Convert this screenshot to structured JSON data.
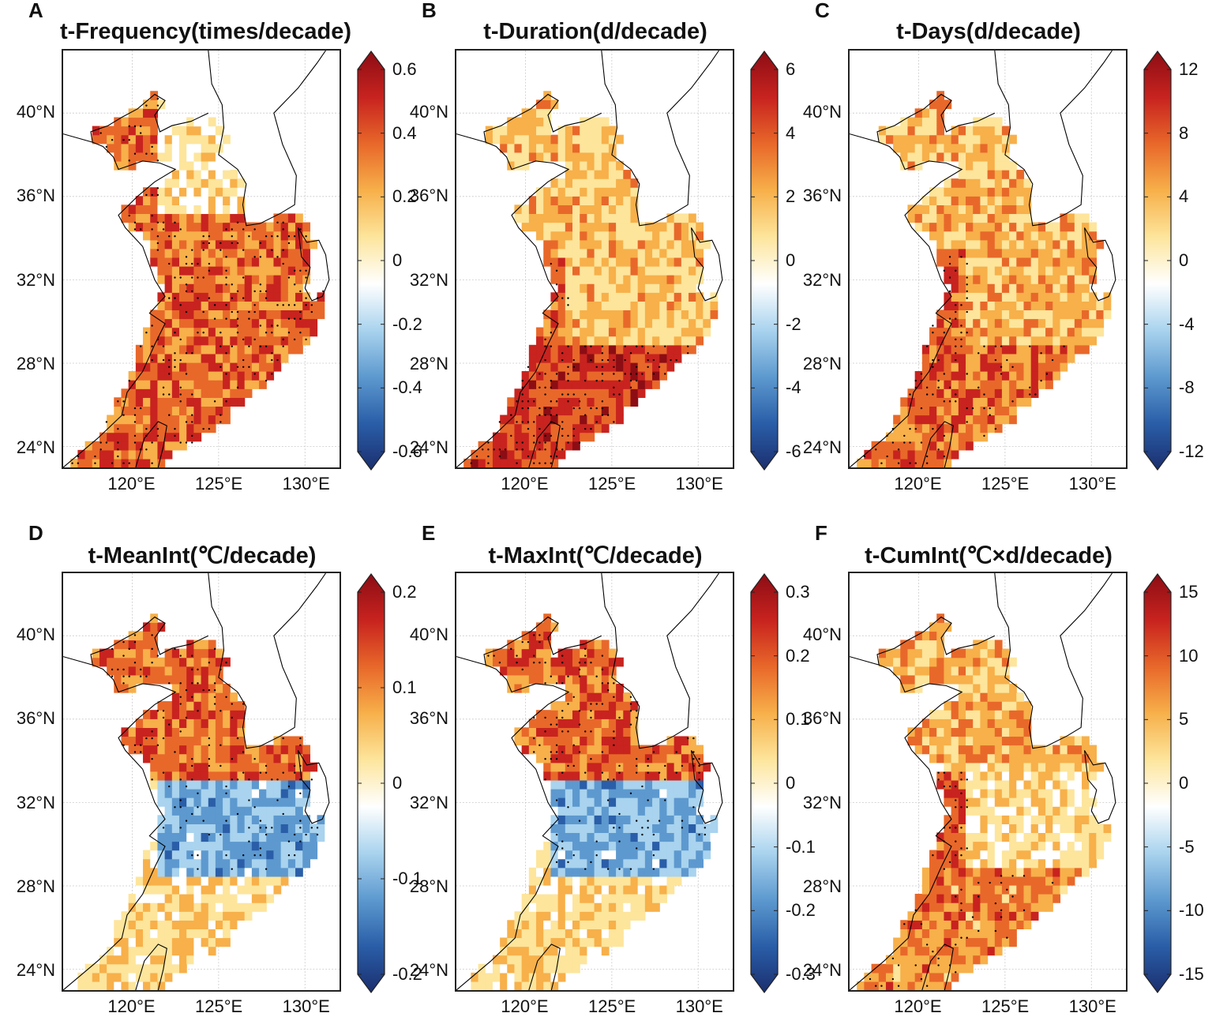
{
  "figure": {
    "lat_labels": [
      "40°N",
      "36°N",
      "32°N",
      "28°N",
      "24°N"
    ],
    "lon_labels": [
      "120°E",
      "125°E",
      "130°E"
    ],
    "colormap": [
      "#1b2f6e",
      "#2a5ea8",
      "#5d99cf",
      "#a9d3ee",
      "#ffffff",
      "#fde59c",
      "#f7b04a",
      "#e8682a",
      "#c8231f",
      "#8c0d14"
    ],
    "panels": [
      {
        "letter": "A",
        "title": "t-Frequency(times/decade)",
        "ticks": [
          "0.6",
          "0.4",
          "0.2",
          "0",
          "-0.2",
          "-0.4",
          "-0.6"
        ],
        "pattern": "widespread-warm"
      },
      {
        "letter": "B",
        "title": "t-Duration(d/decade)",
        "ticks": [
          "6",
          "4",
          "2",
          "0",
          "-2",
          "-4",
          "-6"
        ],
        "pattern": "south-warm"
      },
      {
        "letter": "C",
        "title": "t-Days(d/decade)",
        "ticks": [
          "12",
          "8",
          "4",
          "0",
          "-4",
          "-8",
          "-12"
        ],
        "pattern": "moderate-warm"
      },
      {
        "letter": "D",
        "title": "t-MeanInt(℃/decade)",
        "ticks": [
          "0.2",
          "0.1",
          "0",
          "-0.1",
          "-0.2"
        ],
        "pattern": "north-warm-east-cool"
      },
      {
        "letter": "E",
        "title": "t-MaxInt(℃/decade)",
        "ticks": [
          "0.3",
          "0.2",
          "0.1",
          "0",
          "-0.1",
          "-0.2",
          "-0.3"
        ],
        "pattern": "north-warm-east-cool"
      },
      {
        "letter": "F",
        "title": "t-CumInt(℃×d/decade)",
        "ticks": [
          "15",
          "10",
          "5",
          "0",
          "-5",
          "-10",
          "-15"
        ],
        "pattern": "patchy-warm"
      }
    ]
  }
}
